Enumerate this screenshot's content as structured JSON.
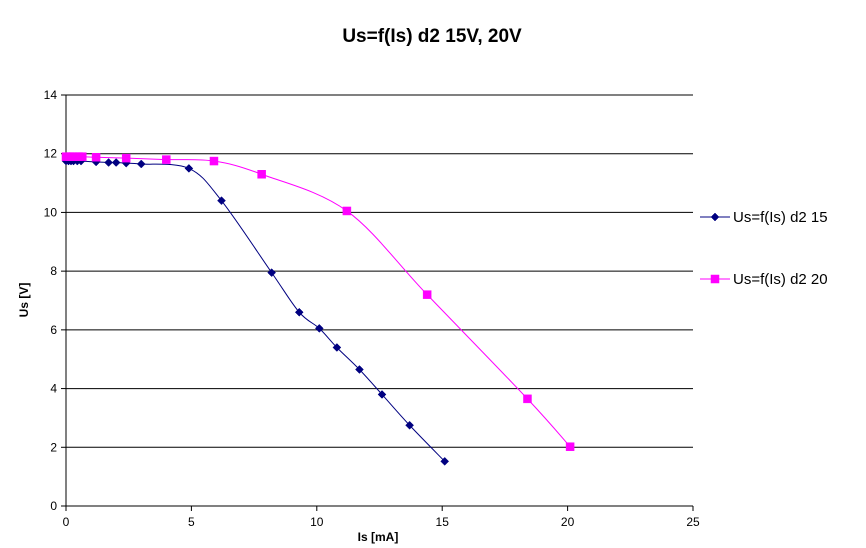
{
  "chart_data": {
    "type": "line",
    "title": "Us=f(Is) d2 15V, 20V",
    "xlabel": "Is [mA]",
    "ylabel": "Us [V]",
    "xlim": [
      0,
      25
    ],
    "ylim": [
      0,
      14
    ],
    "x_ticks": [
      "0",
      "5",
      "10",
      "15",
      "20",
      "25"
    ],
    "y_ticks": [
      "0",
      "2",
      "4",
      "6",
      "8",
      "10",
      "12",
      "14"
    ],
    "grid": "horizontal",
    "legend_position": "right",
    "series": [
      {
        "name": "Us=f(Is) d2 15",
        "color": "#000080",
        "marker": "diamond",
        "points": [
          [
            0.0,
            11.75
          ],
          [
            0.1,
            11.75
          ],
          [
            0.2,
            11.75
          ],
          [
            0.3,
            11.75
          ],
          [
            0.45,
            11.75
          ],
          [
            0.6,
            11.75
          ],
          [
            1.2,
            11.72
          ],
          [
            1.7,
            11.7
          ],
          [
            2.0,
            11.7
          ],
          [
            2.4,
            11.68
          ],
          [
            3.0,
            11.65
          ],
          [
            4.9,
            11.5
          ],
          [
            6.2,
            10.4
          ],
          [
            8.2,
            7.95
          ],
          [
            9.3,
            6.6
          ],
          [
            10.1,
            6.05
          ],
          [
            10.8,
            5.4
          ],
          [
            11.7,
            4.65
          ],
          [
            12.6,
            3.8
          ],
          [
            13.7,
            2.75
          ],
          [
            15.1,
            1.52
          ]
        ]
      },
      {
        "name": "Us=f(Is) d2 20",
        "color": "#ff00ff",
        "marker": "square",
        "points": [
          [
            0.0,
            11.9
          ],
          [
            0.15,
            11.9
          ],
          [
            0.3,
            11.9
          ],
          [
            0.5,
            11.9
          ],
          [
            0.65,
            11.9
          ],
          [
            1.2,
            11.88
          ],
          [
            2.4,
            11.85
          ],
          [
            4.0,
            11.8
          ],
          [
            5.9,
            11.75
          ],
          [
            7.8,
            11.3
          ],
          [
            11.2,
            10.05
          ],
          [
            14.4,
            7.2
          ],
          [
            18.4,
            3.65
          ],
          [
            20.1,
            2.02
          ]
        ]
      }
    ]
  }
}
